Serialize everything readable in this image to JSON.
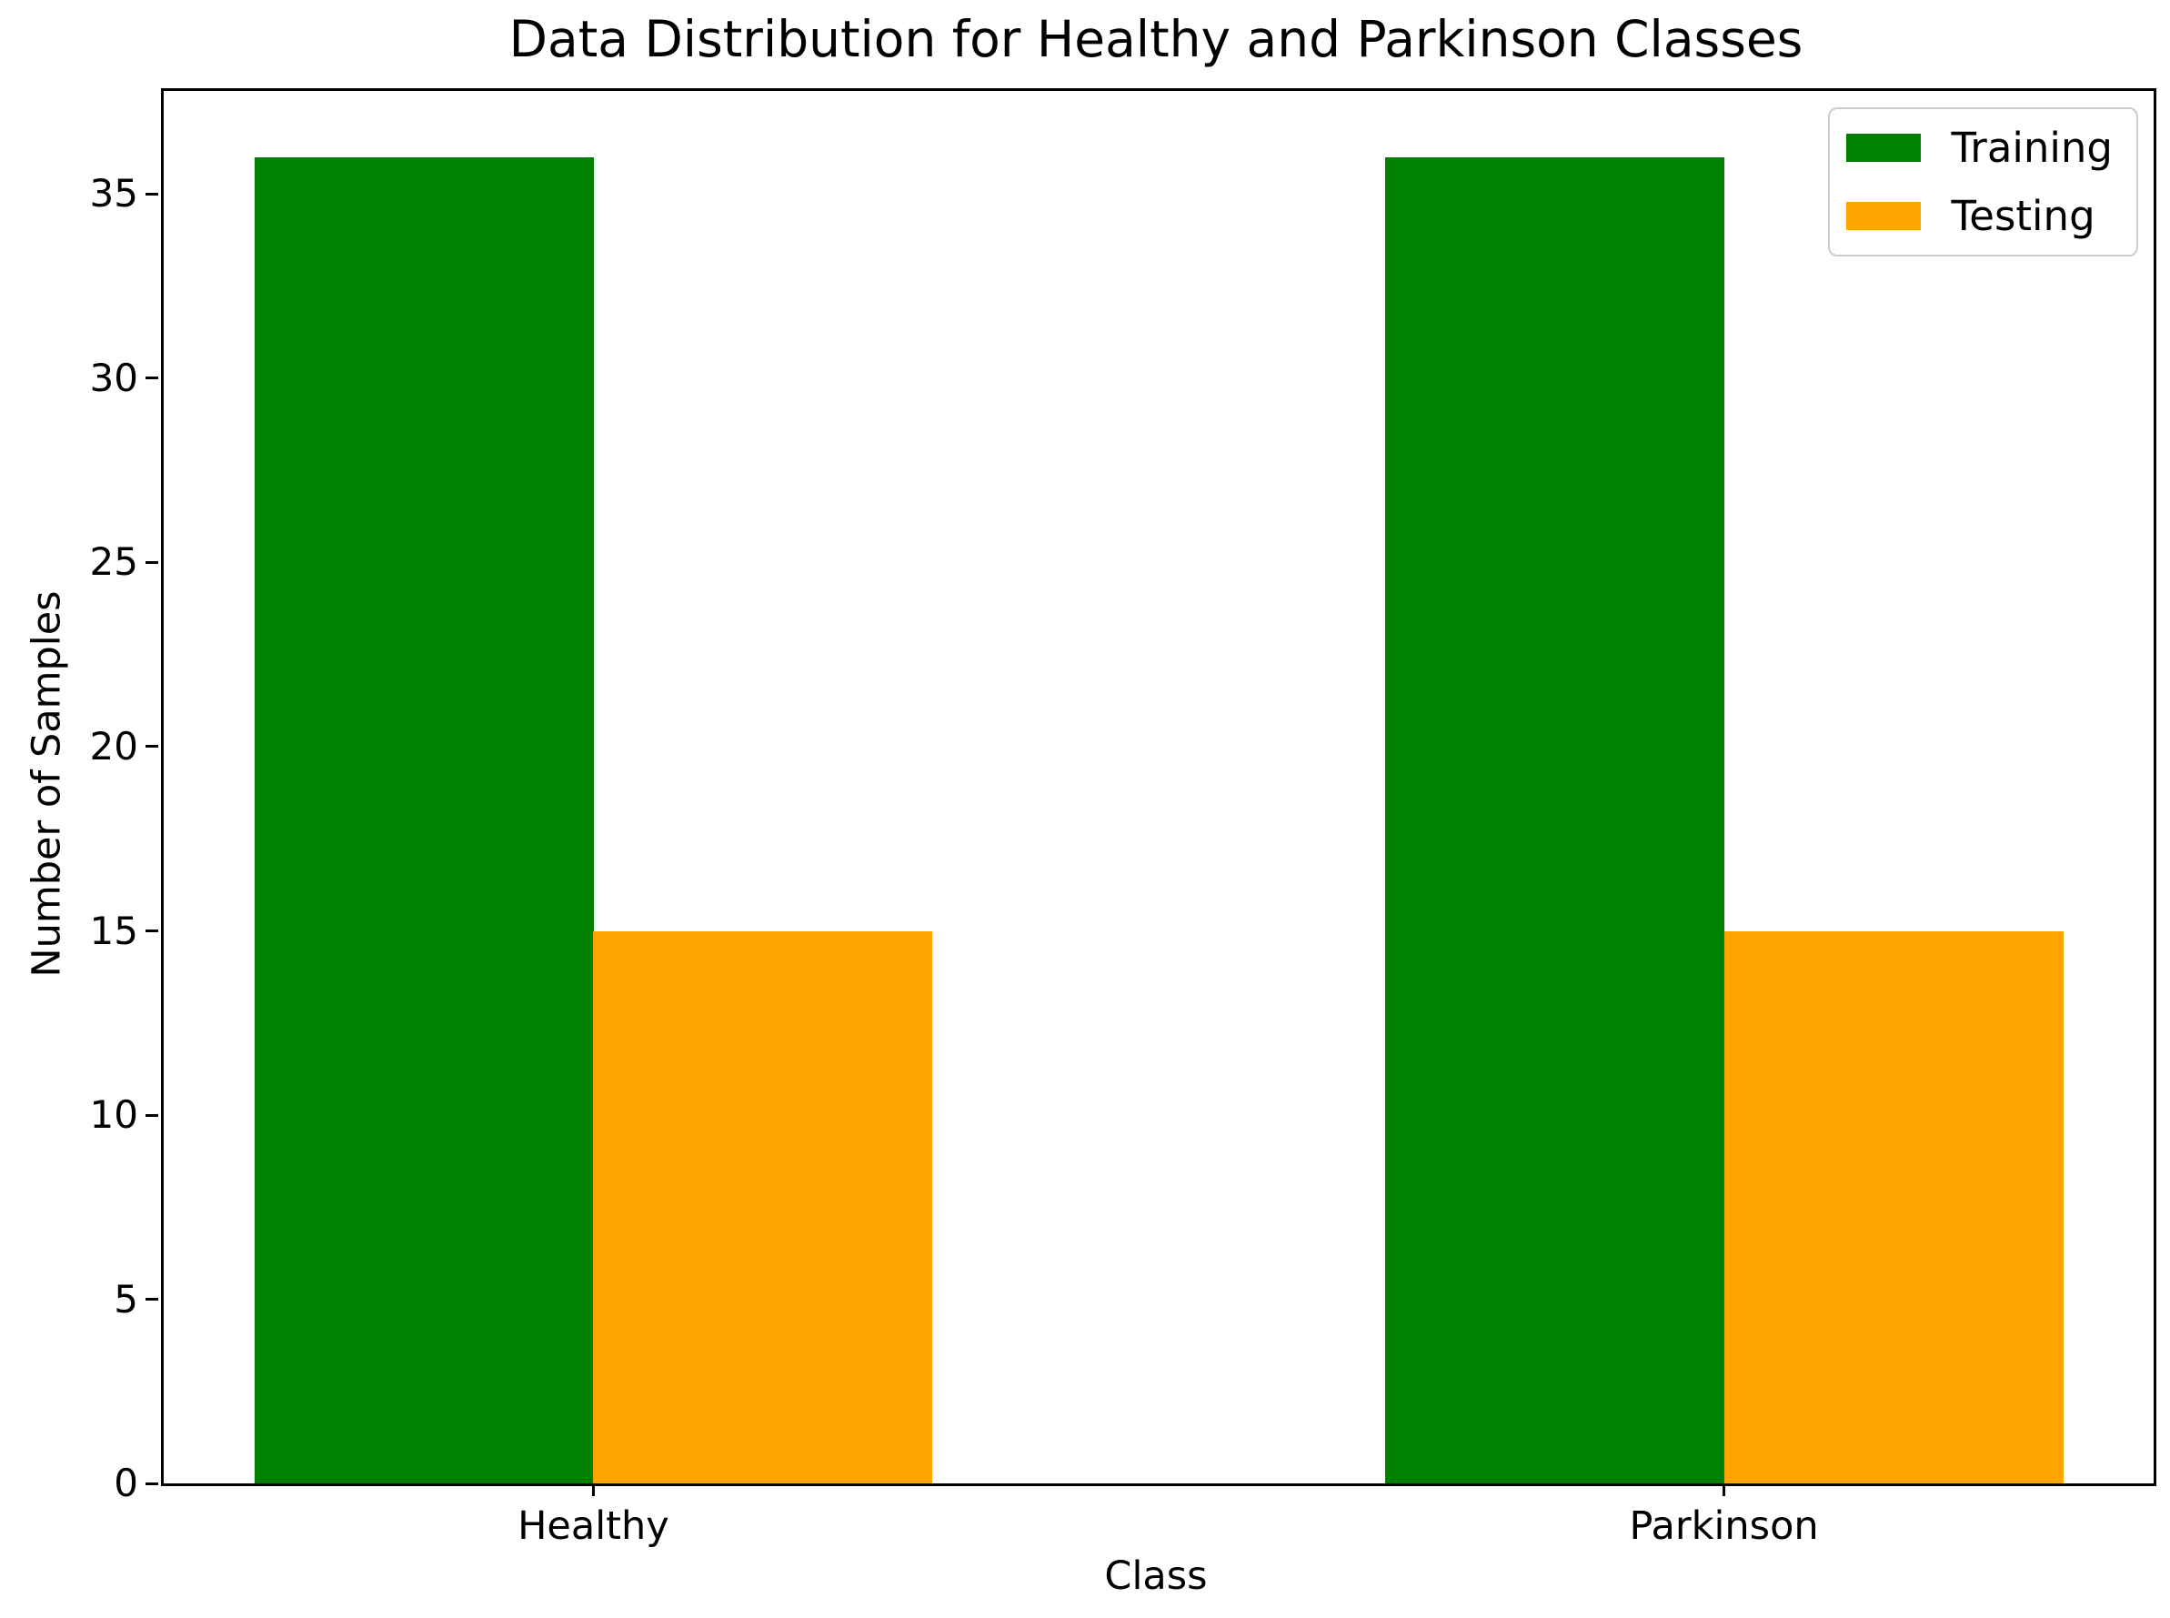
{
  "chart_data": {
    "type": "bar",
    "title": "Data Distribution for Healthy and Parkinson Classes",
    "xlabel": "Class",
    "ylabel": "Number of Samples",
    "categories": [
      "Healthy",
      "Parkinson"
    ],
    "series": [
      {
        "name": "Training",
        "color": "#008000",
        "values": [
          36,
          36
        ]
      },
      {
        "name": "Testing",
        "color": "#FFA500",
        "values": [
          15,
          15
        ]
      }
    ],
    "ylim": [
      0,
      37.8
    ],
    "yticks": [
      0,
      5,
      10,
      15,
      20,
      25,
      30,
      35
    ],
    "xlim": [
      -0.38,
      1.38
    ],
    "group_centers": [
      0,
      1
    ],
    "bar_width": 0.3,
    "grid": false,
    "legend_position": "upper right",
    "background_color": "#ffffff",
    "axis_color": "#000000",
    "text_color": "#000000"
  }
}
